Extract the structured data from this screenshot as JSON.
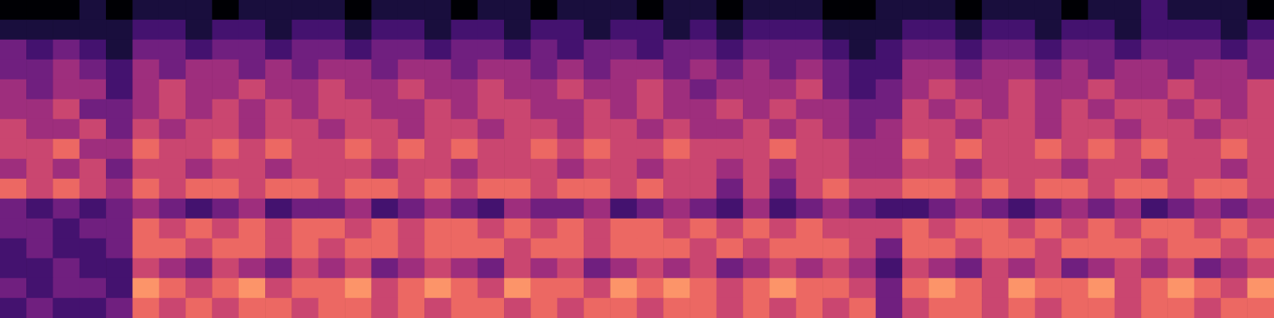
{
  "chart_data": {
    "type": "heatmap",
    "tick_labels": false,
    "grid": false,
    "zlim": [
      0,
      9
    ],
    "cells": [
      [
        0,
        0,
        0,
        1,
        0,
        1,
        1,
        1,
        0,
        1,
        1,
        1,
        1,
        0,
        1,
        1,
        1,
        0,
        1,
        1,
        0,
        1,
        1,
        1,
        0,
        1,
        1,
        0,
        1,
        1,
        1,
        0,
        0,
        1,
        1,
        1,
        0,
        1,
        1,
        1,
        0,
        1,
        1,
        2,
        1,
        1,
        1,
        0
      ],
      [
        1,
        1,
        1,
        1,
        1,
        2,
        2,
        1,
        2,
        2,
        1,
        2,
        2,
        1,
        2,
        2,
        1,
        2,
        2,
        1,
        2,
        2,
        1,
        2,
        2,
        1,
        2,
        1,
        2,
        2,
        2,
        1,
        1,
        1,
        2,
        2,
        1,
        2,
        2,
        1,
        2,
        2,
        1,
        2,
        2,
        2,
        1,
        2
      ],
      [
        3,
        2,
        3,
        2,
        1,
        3,
        3,
        2,
        3,
        3,
        2,
        3,
        3,
        2,
        3,
        3,
        2,
        3,
        3,
        2,
        3,
        2,
        3,
        3,
        2,
        3,
        3,
        2,
        3,
        3,
        3,
        2,
        1,
        2,
        3,
        3,
        2,
        3,
        3,
        2,
        3,
        3,
        2,
        3,
        3,
        3,
        2,
        3
      ],
      [
        3,
        3,
        4,
        3,
        2,
        4,
        3,
        4,
        4,
        3,
        4,
        3,
        4,
        4,
        3,
        4,
        4,
        3,
        4,
        4,
        3,
        4,
        3,
        4,
        4,
        3,
        4,
        3,
        4,
        3,
        4,
        3,
        2,
        2,
        4,
        4,
        3,
        4,
        4,
        3,
        4,
        3,
        4,
        4,
        3,
        4,
        4,
        3
      ],
      [
        4,
        3,
        4,
        4,
        2,
        4,
        5,
        4,
        4,
        5,
        4,
        4,
        5,
        4,
        4,
        5,
        4,
        4,
        5,
        4,
        4,
        5,
        4,
        4,
        5,
        4,
        3,
        4,
        4,
        4,
        5,
        3,
        2,
        3,
        4,
        5,
        4,
        4,
        5,
        4,
        4,
        5,
        4,
        4,
        5,
        4,
        4,
        5
      ],
      [
        4,
        4,
        5,
        3,
        3,
        4,
        5,
        4,
        5,
        4,
        5,
        4,
        5,
        5,
        4,
        4,
        5,
        4,
        5,
        5,
        4,
        4,
        5,
        4,
        5,
        4,
        4,
        5,
        4,
        5,
        4,
        4,
        3,
        3,
        5,
        4,
        5,
        4,
        5,
        4,
        5,
        4,
        5,
        5,
        4,
        5,
        4,
        5
      ],
      [
        5,
        4,
        4,
        5,
        3,
        5,
        4,
        5,
        5,
        4,
        5,
        5,
        4,
        5,
        5,
        4,
        5,
        5,
        4,
        5,
        5,
        4,
        5,
        5,
        4,
        5,
        4,
        4,
        5,
        4,
        5,
        4,
        3,
        4,
        5,
        5,
        4,
        5,
        5,
        4,
        5,
        5,
        4,
        5,
        5,
        4,
        5,
        5
      ],
      [
        5,
        5,
        6,
        4,
        4,
        6,
        5,
        5,
        6,
        5,
        6,
        5,
        5,
        6,
        5,
        6,
        5,
        6,
        5,
        5,
        6,
        5,
        6,
        5,
        5,
        6,
        5,
        5,
        5,
        6,
        5,
        5,
        4,
        4,
        6,
        5,
        6,
        5,
        5,
        6,
        5,
        6,
        5,
        6,
        5,
        5,
        6,
        5
      ],
      [
        4,
        5,
        4,
        5,
        3,
        5,
        5,
        4,
        5,
        5,
        4,
        5,
        5,
        5,
        4,
        5,
        5,
        4,
        5,
        5,
        5,
        4,
        5,
        5,
        4,
        5,
        5,
        4,
        5,
        4,
        5,
        5,
        4,
        4,
        5,
        5,
        4,
        5,
        5,
        5,
        4,
        5,
        5,
        4,
        5,
        5,
        4,
        5
      ],
      [
        6,
        5,
        6,
        5,
        4,
        6,
        5,
        6,
        6,
        5,
        6,
        6,
        5,
        6,
        6,
        5,
        6,
        5,
        6,
        6,
        5,
        6,
        6,
        5,
        6,
        5,
        5,
        3,
        5,
        3,
        5,
        6,
        5,
        5,
        6,
        6,
        5,
        6,
        5,
        6,
        6,
        5,
        6,
        6,
        5,
        6,
        6,
        5
      ],
      [
        3,
        2,
        3,
        2,
        3,
        4,
        3,
        2,
        3,
        4,
        2,
        3,
        3,
        4,
        2,
        3,
        4,
        3,
        2,
        4,
        3,
        3,
        4,
        2,
        3,
        4,
        3,
        2,
        4,
        2,
        3,
        4,
        3,
        2,
        2,
        3,
        4,
        3,
        2,
        3,
        4,
        3,
        4,
        2,
        3,
        4,
        3,
        4
      ],
      [
        3,
        3,
        2,
        3,
        3,
        6,
        5,
        6,
        5,
        6,
        5,
        6,
        6,
        5,
        6,
        5,
        6,
        6,
        5,
        6,
        5,
        6,
        5,
        6,
        6,
        5,
        6,
        5,
        6,
        5,
        6,
        5,
        5,
        5,
        6,
        5,
        6,
        6,
        5,
        6,
        5,
        6,
        5,
        6,
        6,
        5,
        6,
        5
      ],
      [
        2,
        3,
        2,
        2,
        3,
        6,
        6,
        5,
        6,
        6,
        5,
        6,
        5,
        6,
        6,
        5,
        6,
        6,
        6,
        5,
        6,
        6,
        5,
        6,
        6,
        6,
        5,
        6,
        5,
        6,
        6,
        6,
        5,
        3,
        6,
        6,
        5,
        6,
        6,
        5,
        6,
        6,
        6,
        5,
        6,
        6,
        5,
        6
      ],
      [
        2,
        2,
        3,
        2,
        2,
        5,
        4,
        3,
        5,
        4,
        3,
        5,
        4,
        5,
        3,
        4,
        5,
        4,
        3,
        5,
        4,
        5,
        3,
        4,
        5,
        4,
        5,
        3,
        4,
        5,
        4,
        5,
        4,
        2,
        5,
        4,
        3,
        5,
        4,
        5,
        3,
        4,
        5,
        4,
        5,
        3,
        4,
        5
      ],
      [
        3,
        2,
        3,
        3,
        2,
        7,
        6,
        5,
        6,
        7,
        5,
        6,
        6,
        7,
        5,
        6,
        7,
        6,
        5,
        7,
        6,
        6,
        5,
        7,
        6,
        7,
        6,
        5,
        6,
        7,
        6,
        6,
        5,
        3,
        6,
        7,
        6,
        5,
        7,
        6,
        6,
        7,
        5,
        6,
        7,
        6,
        5,
        7
      ],
      [
        2,
        3,
        2,
        2,
        3,
        6,
        5,
        6,
        5,
        6,
        6,
        5,
        6,
        6,
        5,
        6,
        5,
        6,
        6,
        5,
        6,
        5,
        6,
        6,
        5,
        6,
        6,
        5,
        6,
        5,
        6,
        5,
        6,
        3,
        5,
        6,
        6,
        5,
        6,
        5,
        6,
        6,
        5,
        6,
        6,
        5,
        6,
        6
      ]
    ]
  }
}
